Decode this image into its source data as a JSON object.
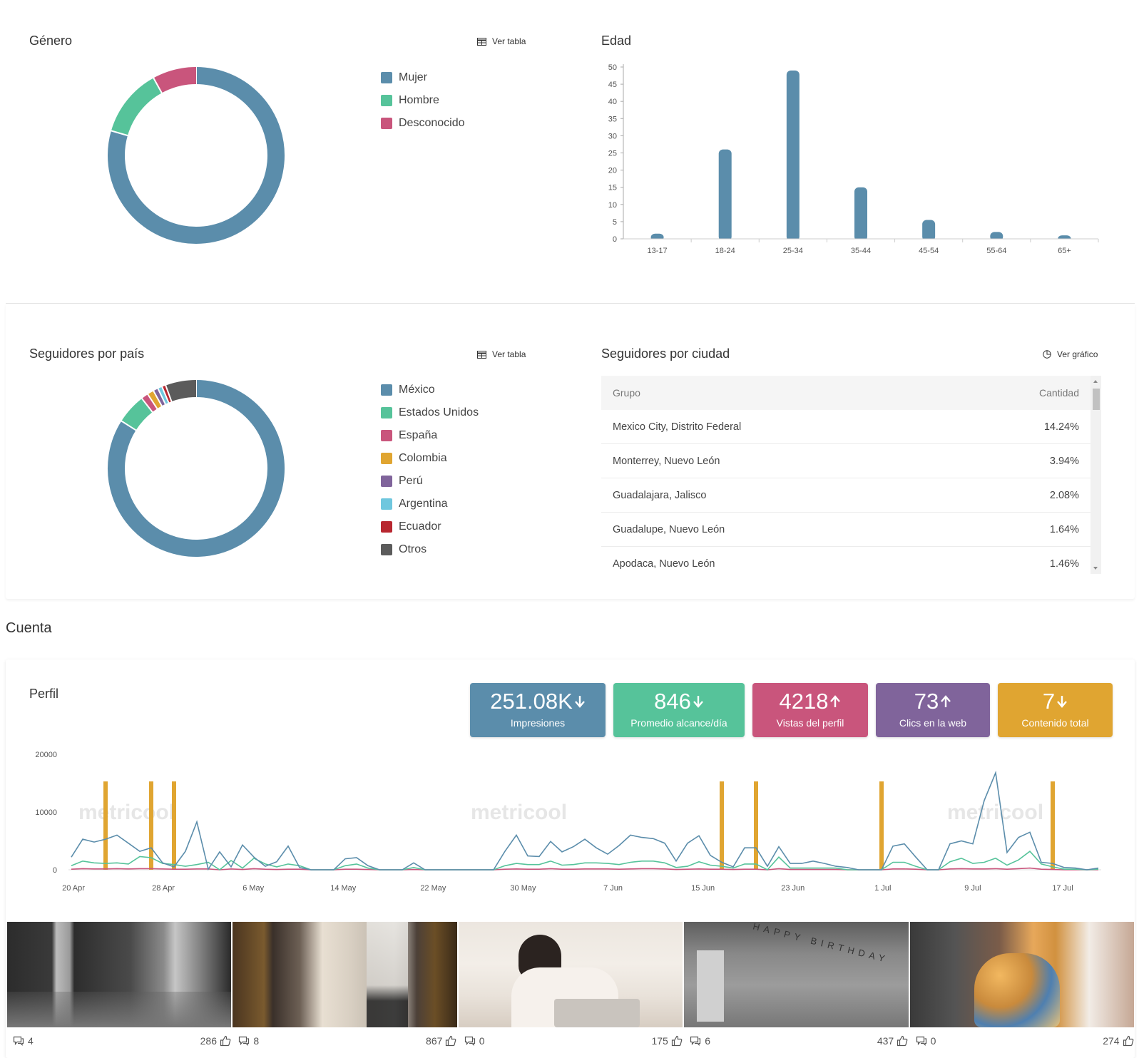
{
  "genero": {
    "title": "Género",
    "ver_tabla": "Ver tabla",
    "legend": [
      {
        "label": "Mujer",
        "color": "#5b8dab",
        "value": 79.5
      },
      {
        "label": "Hombre",
        "color": "#56c39a",
        "value": 12.5
      },
      {
        "label": "Desconocido",
        "color": "#c9557c",
        "value": 8.0
      }
    ]
  },
  "edad": {
    "title": "Edad"
  },
  "chart_data": [
    {
      "type": "bar",
      "title": "Edad",
      "categories": [
        "13-17",
        "18-24",
        "25-34",
        "35-44",
        "45-54",
        "55-64",
        "65+"
      ],
      "values": [
        1.5,
        26,
        49,
        15,
        5.5,
        2,
        1
      ],
      "ylim": [
        0,
        50
      ],
      "yticks": [
        0,
        5,
        10,
        15,
        20,
        25,
        30,
        35,
        40,
        45,
        50
      ],
      "color": "#5b8dab"
    },
    {
      "type": "line",
      "title": "Perfil",
      "xlabels": [
        "20 Apr",
        "28 Apr",
        "6 May",
        "14 May",
        "22 May",
        "30 May",
        "7 Jun",
        "15 Jun",
        "23 Jun",
        "1 Jul",
        "9 Jul",
        "17 Jul"
      ],
      "yticks": [
        "0",
        "10000",
        "20000"
      ],
      "ylim": [
        0,
        20000
      ],
      "watermark": "metricool",
      "series": [
        {
          "color": "#5b8dab",
          "values": [
            2200,
            5300,
            4800,
            5300,
            6000,
            4600,
            3200,
            3800,
            1200,
            500,
            3200,
            8300,
            100,
            3100,
            500,
            4300,
            2200,
            600,
            1400,
            4100,
            400,
            0,
            0,
            0,
            1900,
            2100,
            700,
            0,
            0,
            0,
            1200,
            0,
            0,
            0,
            0,
            0,
            0,
            0,
            3200,
            6000,
            2400,
            2300,
            4900,
            3100,
            4000,
            5300,
            3800,
            2700,
            4200,
            6000,
            5600,
            5400,
            4600,
            1500,
            4600,
            5900,
            2500,
            1300,
            500,
            3800,
            3800,
            600,
            4000,
            1100,
            1100,
            1500,
            1100,
            600,
            400,
            0,
            0,
            0,
            4100,
            4500,
            2200,
            0,
            0,
            4500,
            5000,
            4500,
            12000,
            16800,
            3000,
            5600,
            6500,
            1300,
            1100,
            400,
            300,
            0,
            300
          ]
        },
        {
          "color": "#56c39a",
          "values": [
            700,
            1500,
            1200,
            1100,
            1200,
            1000,
            2300,
            2100,
            1100,
            900,
            600,
            900,
            1300,
            0,
            1600,
            300,
            2000,
            1000,
            500,
            1000,
            700,
            0,
            0,
            0,
            700,
            1000,
            300,
            0,
            0,
            0,
            400,
            0,
            0,
            0,
            0,
            0,
            0,
            0,
            700,
            1100,
            900,
            900,
            1500,
            800,
            900,
            1200,
            1200,
            1100,
            900,
            1300,
            1500,
            1500,
            1200,
            400,
            600,
            1400,
            800,
            600,
            300,
            1000,
            1000,
            0,
            2200,
            300,
            300,
            300,
            300,
            300,
            0,
            0,
            0,
            0,
            1300,
            1300,
            600,
            0,
            0,
            1400,
            2000,
            1100,
            1300,
            2000,
            800,
            1700,
            3200,
            1000,
            500,
            100,
            100,
            0,
            100
          ]
        },
        {
          "color": "#c9557c",
          "values": [
            100,
            200,
            150,
            150,
            200,
            150,
            200,
            200,
            150,
            100,
            100,
            150,
            150,
            0,
            150,
            50,
            200,
            100,
            50,
            100,
            100,
            0,
            0,
            0,
            100,
            100,
            50,
            0,
            0,
            0,
            50,
            0,
            0,
            0,
            0,
            0,
            0,
            0,
            100,
            150,
            100,
            100,
            200,
            100,
            100,
            150,
            150,
            150,
            100,
            150,
            200,
            200,
            150,
            50,
            100,
            150,
            100,
            100,
            50,
            100,
            100,
            0,
            200,
            50,
            50,
            50,
            50,
            50,
            0,
            0,
            0,
            0,
            150,
            150,
            100,
            0,
            0,
            150,
            200,
            150,
            150,
            200,
            100,
            200,
            300,
            100,
            50,
            0,
            0,
            0,
            0
          ]
        }
      ],
      "bars": {
        "color": "#e0a531",
        "positions": [
          3,
          7,
          9,
          57,
          60,
          71,
          86
        ],
        "value": 15300
      }
    }
  ],
  "pais": {
    "title": "Seguidores por país",
    "ver_tabla": "Ver tabla",
    "legend": [
      {
        "label": "México",
        "color": "#5b8dab",
        "value": 84.0
      },
      {
        "label": "Estados Unidos",
        "color": "#56c39a",
        "value": 5.5
      },
      {
        "label": "España",
        "color": "#c9557c",
        "value": 1.3
      },
      {
        "label": "Colombia",
        "color": "#e0a531",
        "value": 1.2
      },
      {
        "label": "Perú",
        "color": "#80649b",
        "value": 0.9
      },
      {
        "label": "Argentina",
        "color": "#6fc7de",
        "value": 0.8
      },
      {
        "label": "Ecuador",
        "color": "#b82730",
        "value": 0.7
      },
      {
        "label": "Otros",
        "color": "#5b5b5b",
        "value": 5.6
      }
    ]
  },
  "ciudad": {
    "title": "Seguidores por ciudad",
    "ver_grafico": "Ver gráfico",
    "header": {
      "group": "Grupo",
      "count": "Cantidad"
    },
    "rows": [
      {
        "city": "Mexico City, Distrito Federal",
        "value": "14.24%"
      },
      {
        "city": "Monterrey, Nuevo León",
        "value": "3.94%"
      },
      {
        "city": "Guadalajara, Jalisco",
        "value": "2.08%"
      },
      {
        "city": "Guadalupe, Nuevo León",
        "value": "1.64%"
      },
      {
        "city": "Apodaca, Nuevo León",
        "value": "1.46%"
      }
    ]
  },
  "cuenta": {
    "title": "Cuenta"
  },
  "perfil": {
    "title": "Perfil",
    "kpis": [
      {
        "value": "251.08K",
        "label": "Impresiones",
        "trend": "down",
        "color": "#5b8dab"
      },
      {
        "value": "846",
        "label": "Promedio alcance/día",
        "trend": "down",
        "color": "#56c39a"
      },
      {
        "value": "4218",
        "label": "Vistas del perfil",
        "trend": "up",
        "color": "#c9557c"
      },
      {
        "value": "73",
        "label": "Clics en la web",
        "trend": "up",
        "color": "#80649b"
      },
      {
        "value": "7",
        "label": "Contenido total",
        "trend": "down",
        "color": "#e0a531"
      }
    ]
  },
  "posts": [
    {
      "comments": "4",
      "likes": "286"
    },
    {
      "comments": "8",
      "likes": "867"
    },
    {
      "comments": "0",
      "likes": "175"
    },
    {
      "comments": "6",
      "likes": "437"
    },
    {
      "comments": "0",
      "likes": "274"
    }
  ],
  "post_photo_text": "HAPPY BIRTHDAY"
}
